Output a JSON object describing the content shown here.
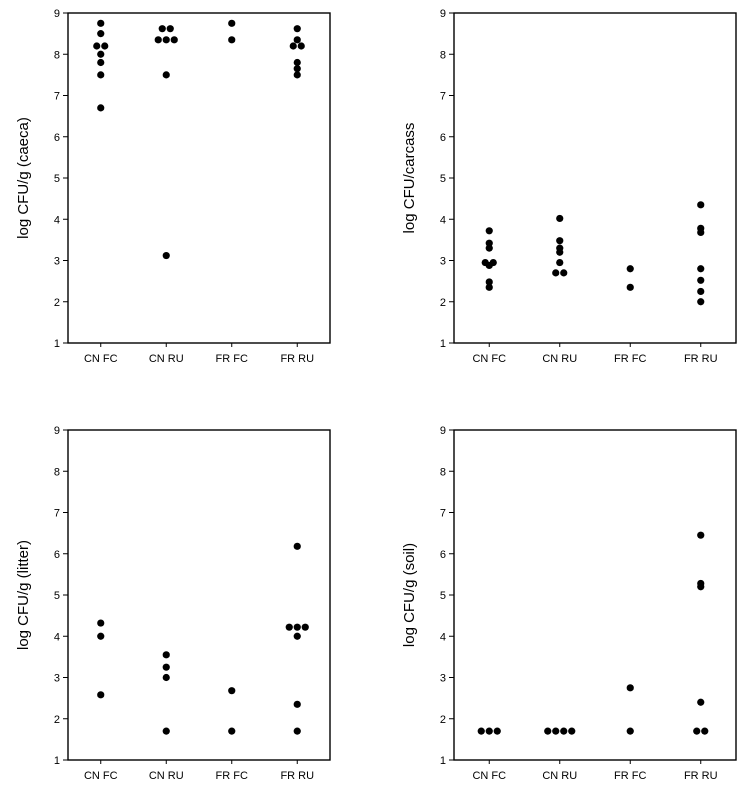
{
  "chart_data": [
    {
      "id": "caeca",
      "type": "scatter",
      "ylabel": "log CFU/g (caeca)",
      "xlabel": "",
      "ylim": [
        1,
        9
      ],
      "yticks": [
        1,
        2,
        3,
        4,
        5,
        6,
        7,
        8,
        9
      ],
      "categories": [
        "CN FC",
        "CN RU",
        "FR FC",
        "FR RU"
      ],
      "groups": [
        [
          8.75,
          8.5,
          8.2,
          8.2,
          8.0,
          7.8,
          7.5,
          6.7
        ],
        [
          8.62,
          8.62,
          8.35,
          8.35,
          8.35,
          7.5,
          3.12
        ],
        [
          8.75,
          8.35
        ],
        [
          8.62,
          8.35,
          8.2,
          8.2,
          7.8,
          7.65,
          7.5
        ]
      ],
      "grid": false
    },
    {
      "id": "carcass",
      "type": "scatter",
      "ylabel": "log CFU/carcass",
      "xlabel": "",
      "ylim": [
        1,
        9
      ],
      "yticks": [
        1,
        2,
        3,
        4,
        5,
        6,
        7,
        8,
        9
      ],
      "categories": [
        "CN FC",
        "CN RU",
        "FR FC",
        "FR RU"
      ],
      "groups": [
        [
          3.72,
          3.42,
          3.3,
          2.95,
          2.95,
          2.88,
          2.48,
          2.35
        ],
        [
          4.02,
          3.48,
          3.3,
          3.2,
          2.95,
          2.7,
          2.7
        ],
        [
          2.8,
          2.35
        ],
        [
          4.35,
          3.78,
          3.68,
          2.8,
          2.52,
          2.25,
          2.0
        ]
      ],
      "grid": false
    },
    {
      "id": "litter",
      "type": "scatter",
      "ylabel": "log CFU/g (litter)",
      "xlabel": "",
      "ylim": [
        1,
        9
      ],
      "yticks": [
        1,
        2,
        3,
        4,
        5,
        6,
        7,
        8,
        9
      ],
      "categories": [
        "CN FC",
        "CN RU",
        "FR FC",
        "FR RU"
      ],
      "groups": [
        [
          4.32,
          4.0,
          2.58
        ],
        [
          3.55,
          3.25,
          3.0,
          1.7
        ],
        [
          2.68,
          1.7
        ],
        [
          6.18,
          4.22,
          4.22,
          4.22,
          4.0,
          2.35,
          1.7
        ]
      ],
      "grid": false
    },
    {
      "id": "soil",
      "type": "scatter",
      "ylabel": "log CFU/g (soil)",
      "xlabel": "",
      "ylim": [
        1,
        9
      ],
      "yticks": [
        1,
        2,
        3,
        4,
        5,
        6,
        7,
        8,
        9
      ],
      "categories": [
        "CN FC",
        "CN RU",
        "FR FC",
        "FR RU"
      ],
      "groups": [
        [
          1.7,
          1.7,
          1.7
        ],
        [
          1.7,
          1.7,
          1.7,
          1.7
        ],
        [
          2.75,
          1.7
        ],
        [
          6.45,
          5.28,
          5.2,
          2.4,
          1.7,
          1.7
        ]
      ],
      "grid": false
    }
  ],
  "style": {
    "point_color": "#000000",
    "axis_color": "#000000",
    "background": "#ffffff"
  }
}
